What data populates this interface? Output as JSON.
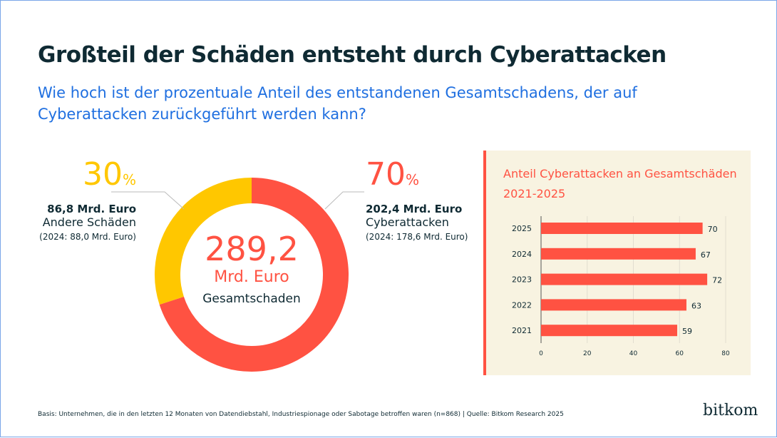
{
  "title": "Großteil der Schäden entsteht durch Cyberattacken",
  "subtitle": "Wie hoch ist der prozentuale Anteil des entstandenen Gesamtschadens, der auf Cyberattacken zurückgeführt werden kann?",
  "donut": {
    "total": "289,2",
    "unit": "Mrd. Euro",
    "total_label": "Gesamtschaden",
    "segments": [
      {
        "pct": "70",
        "pct_sign": "%",
        "value": 70,
        "amount": "202,4 Mrd. Euro",
        "label": "Cyberattacken",
        "previous": "(2024: 178,6 Mrd. Euro)",
        "color": "#ff5242"
      },
      {
        "pct": "30",
        "pct_sign": "%",
        "value": 30,
        "amount": "86,8 Mrd. Euro",
        "label": "Andere Schäden",
        "previous": "(2024: 88,0 Mrd. Euro)",
        "color": "#ffc700"
      }
    ]
  },
  "chart_data": [
    {
      "type": "pie",
      "values": [
        70,
        30
      ],
      "categories": [
        "Cyberattacken",
        "Andere Schäden"
      ]
    },
    {
      "type": "bar",
      "orientation": "horizontal",
      "title": "Anteil Cyberattacken an Gesamtschäden 2021-2025",
      "categories": [
        "2025",
        "2024",
        "2023",
        "2022",
        "2021"
      ],
      "values": [
        70,
        67,
        72,
        63,
        59
      ],
      "xlim": [
        0,
        80
      ],
      "xticks": [
        "0",
        "20",
        "40",
        "60",
        "80"
      ],
      "grid": true,
      "color": "#ff5242"
    }
  ],
  "footer": "Basis: Unternehmen, die in den letzten 12 Monaten von Datendiebstahl, Industriespionage oder Sabotage betroffen waren (n=868) | Quelle: Bitkom Research 2025",
  "logo": "bitkom"
}
